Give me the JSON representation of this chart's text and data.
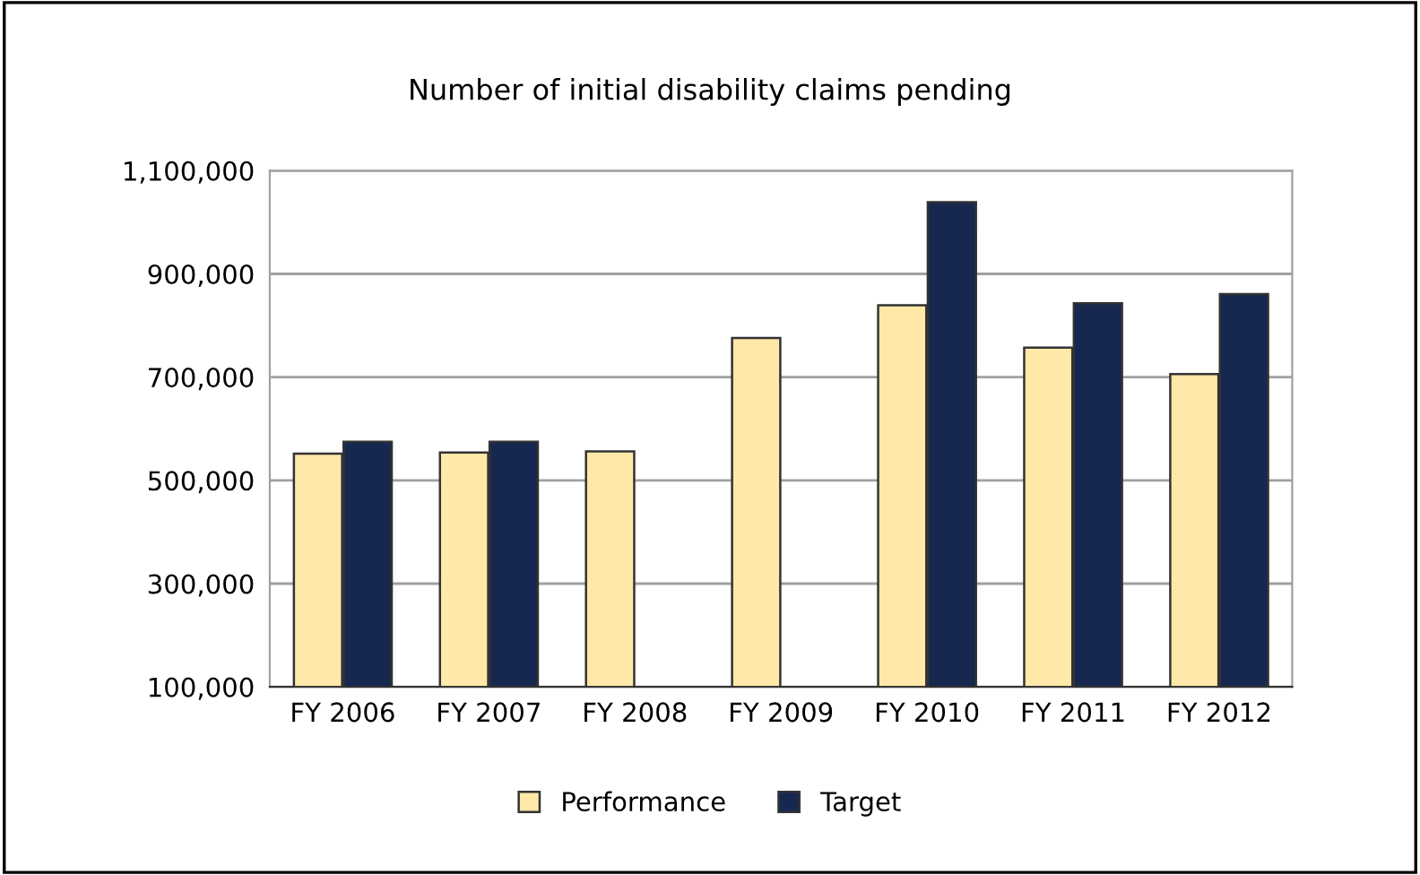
{
  "chart_data": {
    "type": "bar",
    "title": "Number of initial disability claims pending",
    "categories": [
      "FY 2006",
      "FY 2007",
      "FY 2008",
      "FY 2009",
      "FY 2010",
      "FY 2011",
      "FY 2012"
    ],
    "series": [
      {
        "name": "Performance",
        "color": "#ffe8a8",
        "values": [
          552000,
          554000,
          556000,
          776000,
          839000,
          757000,
          706000
        ]
      },
      {
        "name": "Target",
        "color": "#162850",
        "values": [
          575000,
          575000,
          null,
          null,
          1039000,
          843000,
          861000
        ]
      }
    ],
    "ylim": [
      100000,
      1100000
    ],
    "yticks": [
      {
        "value": 100000,
        "label": "100,000"
      },
      {
        "value": 300000,
        "label": "300,000"
      },
      {
        "value": 500000,
        "label": "500,000"
      },
      {
        "value": 700000,
        "label": "700,000"
      },
      {
        "value": 900000,
        "label": "900,000"
      },
      {
        "value": 1100000,
        "label": "1,100,000"
      }
    ],
    "grid": "y",
    "legend": "bottom"
  }
}
